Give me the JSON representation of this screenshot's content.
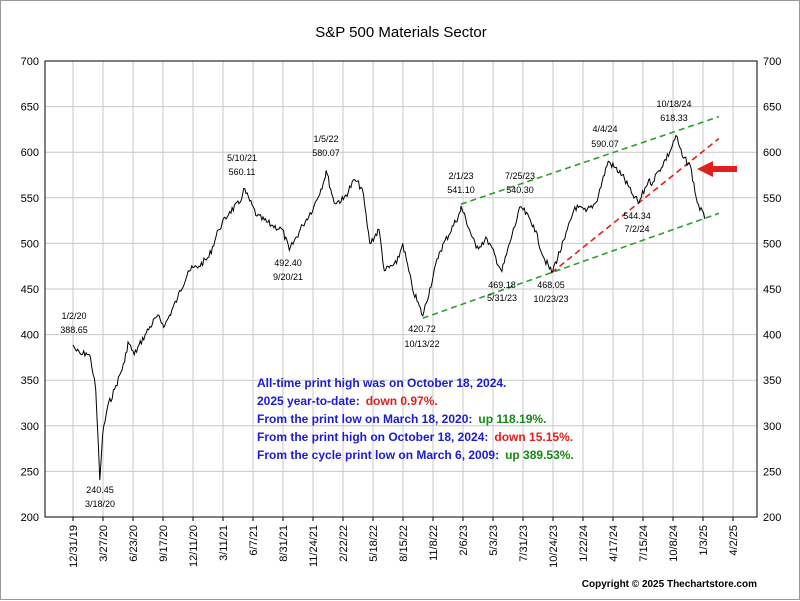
{
  "chart_data": {
    "type": "line",
    "title": "S&P 500 Materials Sector",
    "xlabel": "",
    "ylabel": "",
    "ylim": [
      200,
      700
    ],
    "y_ticks": [
      "200",
      "250",
      "300",
      "350",
      "400",
      "450",
      "500",
      "550",
      "600",
      "650",
      "700"
    ],
    "x_ticks": [
      "12/31/19",
      "3/27/20",
      "6/23/20",
      "9/17/20",
      "12/11/20",
      "3/11/21",
      "6/7/21",
      "8/31/21",
      "11/24/21",
      "2/22/22",
      "5/18/22",
      "8/15/22",
      "11/8/22",
      "2/6/23",
      "5/3/23",
      "7/31/23",
      "10/24/23",
      "1/22/24",
      "4/17/24",
      "7/15/24",
      "10/8/24",
      "1/3/25",
      "4/2/25"
    ],
    "grid": true,
    "colors": {
      "price": "#000000",
      "channel": "#2ca02c",
      "trendline": "#e0201e",
      "info_blue": "#1a1ad8",
      "info_red": "#e0201e",
      "info_green": "#138a13",
      "grid": "#c8c8c8"
    },
    "series": [
      {
        "x": [
          "2019-12-31",
          "2020-01-10",
          "2020-01-24",
          "2020-02-07",
          "2020-02-20",
          "2020-03-06",
          "2020-03-18",
          "2020-03-26",
          "2020-04-09",
          "2020-04-30",
          "2020-05-29",
          "2020-06-08",
          "2020-06-26",
          "2020-07-31",
          "2020-08-31",
          "2020-09-23",
          "2020-10-30",
          "2020-11-30",
          "2020-12-31",
          "2021-01-29",
          "2021-02-26",
          "2021-03-31",
          "2021-04-30",
          "2021-05-10",
          "2021-06-18",
          "2021-07-30",
          "2021-08-31",
          "2021-09-20",
          "2021-10-29",
          "2021-11-30",
          "2021-12-31",
          "2022-01-05",
          "2022-01-28",
          "2022-02-24",
          "2022-03-29",
          "2022-04-20",
          "2022-05-12",
          "2022-06-08",
          "2022-06-23",
          "2022-07-29",
          "2022-08-16",
          "2022-09-13",
          "2022-10-13",
          "2022-11-30",
          "2023-01-31",
          "2023-02-01",
          "2023-03-17",
          "2023-04-18",
          "2023-05-31",
          "2023-06-30",
          "2023-07-25",
          "2023-08-31",
          "2023-09-29",
          "2023-10-23",
          "2023-11-30",
          "2023-12-29",
          "2024-01-31",
          "2024-02-29",
          "2024-04-04",
          "2024-05-15",
          "2024-06-11",
          "2024-07-02",
          "2024-07-31",
          "2024-08-05",
          "2024-08-30",
          "2024-09-30",
          "2024-10-18",
          "2024-11-06",
          "2024-11-29",
          "2024-12-19",
          "2025-01-10"
        ],
        "values": [
          388.65,
          382,
          378,
          380,
          375,
          340,
          240.45,
          290,
          320,
          340,
          370,
          392,
          378,
          402,
          420,
          410,
          440,
          470,
          475,
          485,
          515,
          535,
          545,
          560.11,
          530,
          520,
          515,
          492.4,
          520,
          540,
          570,
          580.07,
          545,
          548,
          570,
          560,
          500,
          515,
          470,
          478,
          500,
          450,
          420.72,
          490,
          535,
          541.1,
          495,
          505,
          469.18,
          510,
          540.3,
          520,
          485,
          468.05,
          505,
          540,
          535,
          545,
          590.07,
          575,
          555,
          544.34,
          570,
          565,
          580,
          600,
          618.33,
          595,
          585,
          545,
          527
        ]
      }
    ],
    "annotations": [
      {
        "date": "1/2/20",
        "value": "388.65"
      },
      {
        "date": "3/18/20",
        "value": "240.45"
      },
      {
        "date": "5/10/21",
        "value": "560.11"
      },
      {
        "date": "9/20/21",
        "value": "492.40"
      },
      {
        "date": "1/5/22",
        "value": "580.07"
      },
      {
        "date": "10/13/22",
        "value": "420.72"
      },
      {
        "date": "2/1/23",
        "value": "541.10"
      },
      {
        "date": "5/31/23",
        "value": "469.18"
      },
      {
        "date": "7/25/23",
        "value": "540.30"
      },
      {
        "date": "10/23/23",
        "value": "468.05"
      },
      {
        "date": "4/4/24",
        "value": "590.07"
      },
      {
        "date": "7/2/24",
        "value": "544.34"
      },
      {
        "date": "10/18/24",
        "value": "618.33"
      }
    ],
    "info_box": {
      "line1": "All-time print high was on October 18, 2024.",
      "line2_label": "2025 year-to-date:",
      "line2_value": "down 0.97%.",
      "line3_label": "From the print low on March 18, 2020:",
      "line3_value": "up 118.19%.",
      "line4_label": "From the print high on October 18, 2024:",
      "line4_value": "down 15.15%.",
      "line5_label": "From the cycle print low on March 6, 2009:",
      "line5_value": "up 389.53%."
    },
    "copyright": "Copyright © 2025 Thechartstore.com"
  }
}
